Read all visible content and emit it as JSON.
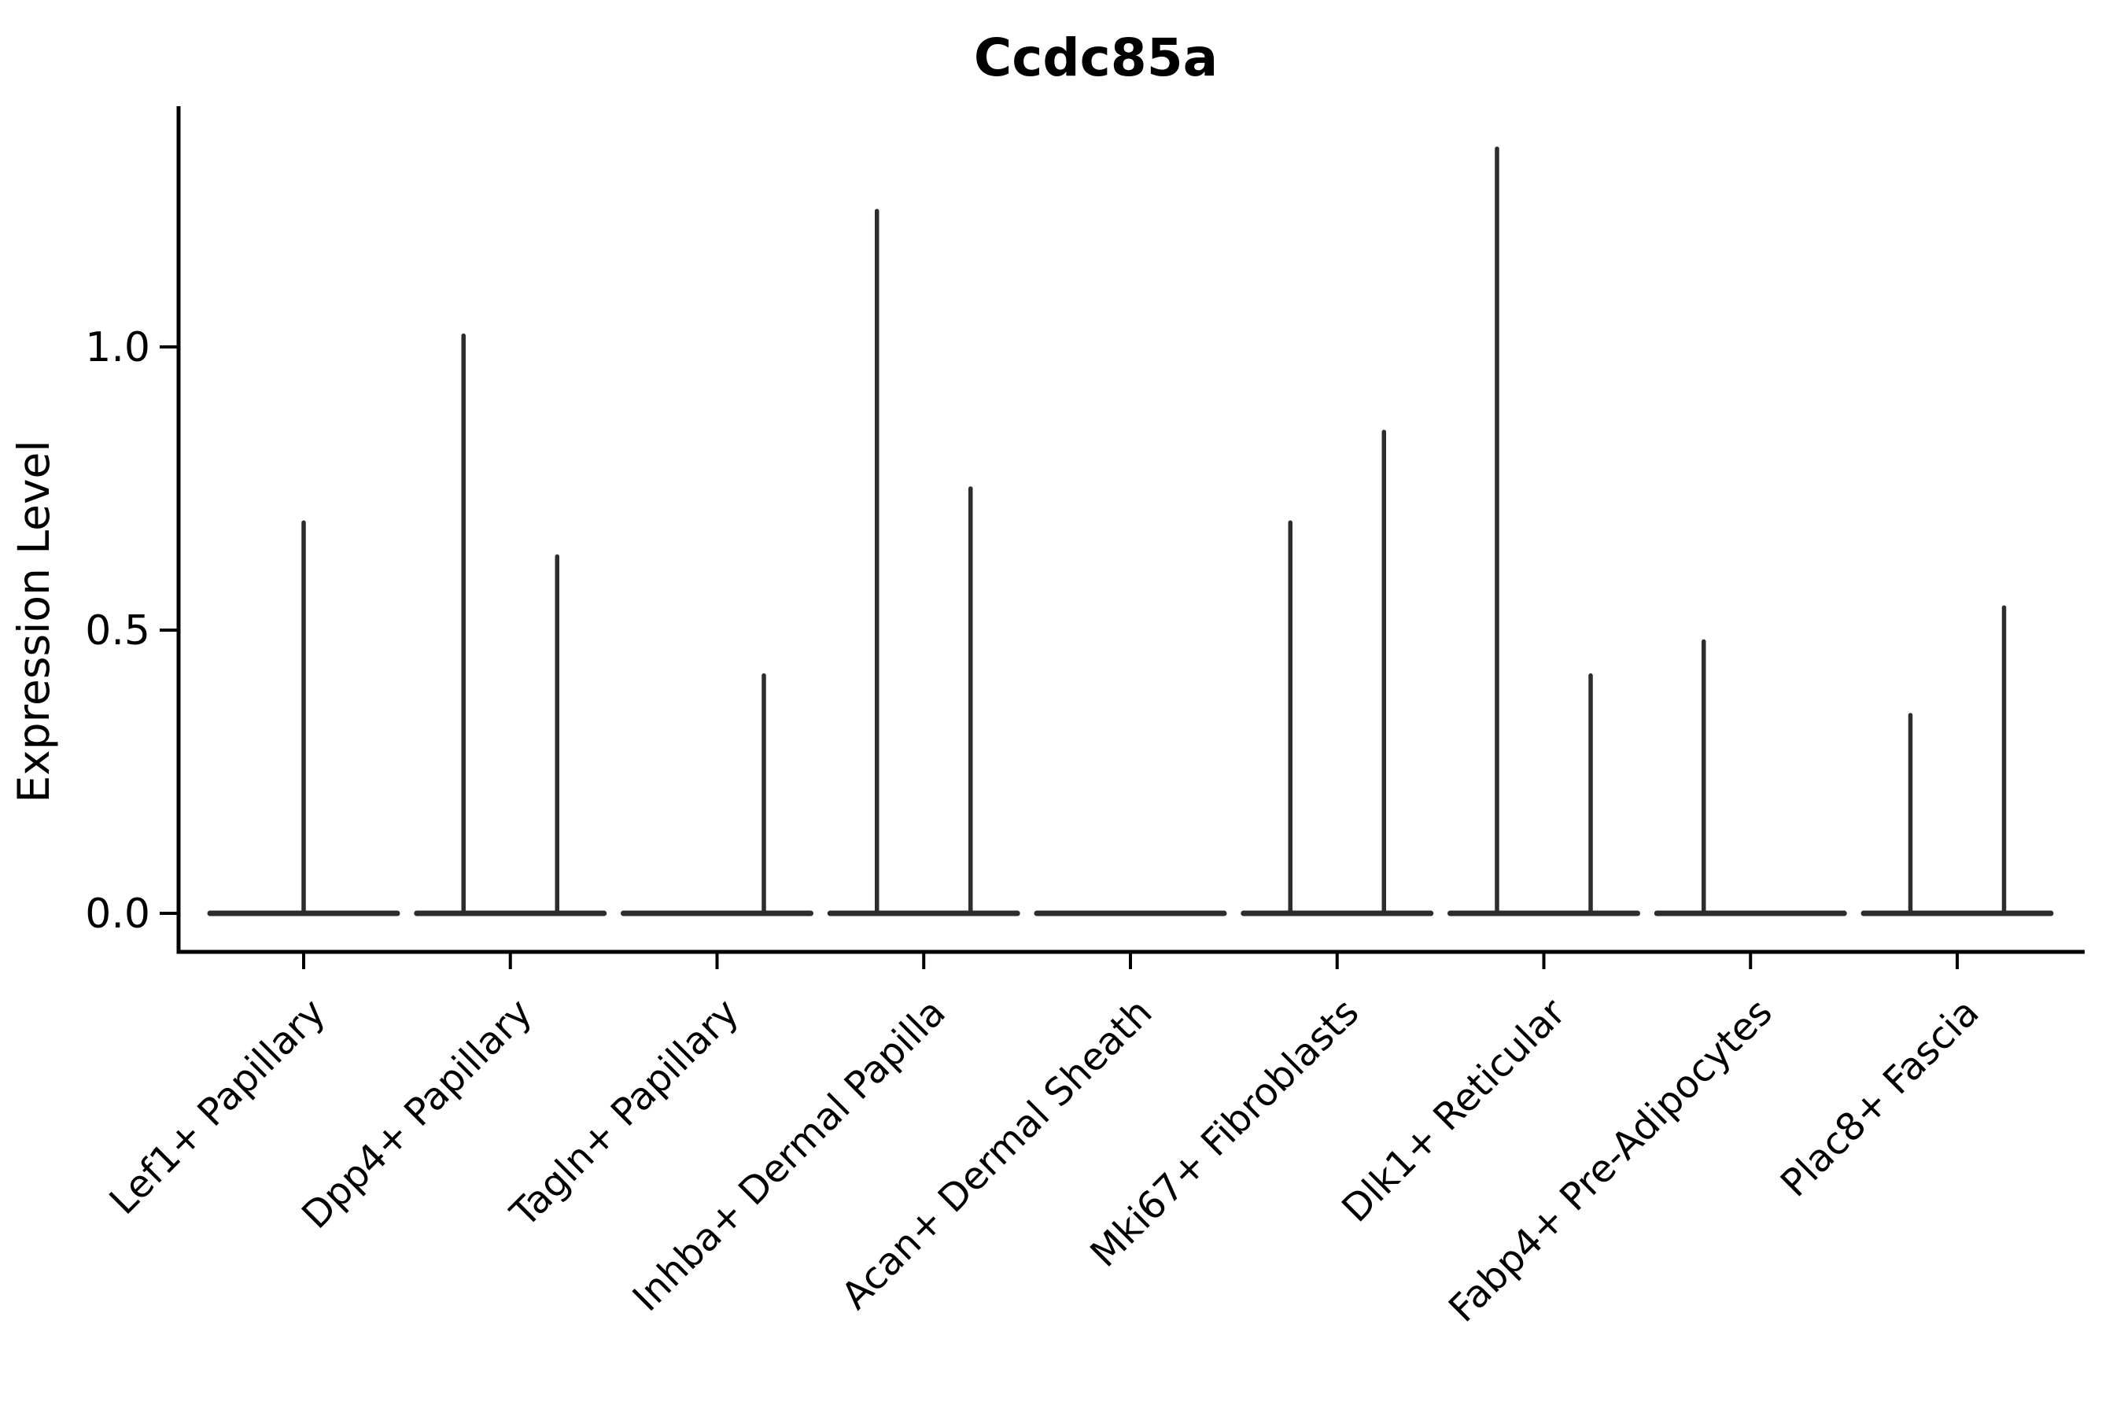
{
  "chart_data": {
    "type": "violin",
    "title": "Ccdc85a",
    "ylabel": "Expression Level",
    "xlabel": "",
    "grid": false,
    "legend": "none",
    "ylim": [
      -0.07,
      1.42
    ],
    "yticks": [
      {
        "label": "0.0",
        "value": 0.0
      },
      {
        "label": "0.5",
        "value": 0.5
      },
      {
        "label": "1.0",
        "value": 1.0
      }
    ],
    "categories": [
      "Lef1+ Papillary",
      "Dpp4+ Papillary",
      "Tagln+ Papillary",
      "Inhba+ Dermal Papilla",
      "Acan+ Dermal Sheath",
      "Mki67+ Fibroblasts",
      "Dlk1+ Reticular",
      "Fabp4+ Pre-Adipocytes",
      "Plac8+ Fascia"
    ],
    "violins": [
      {
        "category": "Lef1+ Papillary",
        "base_at_zero": true,
        "spikes": [
          {
            "offset": 0.0,
            "max": 0.69
          }
        ]
      },
      {
        "category": "Dpp4+ Papillary",
        "base_at_zero": true,
        "spikes": [
          {
            "offset": -0.2265,
            "max": 1.02
          },
          {
            "offset": 0.2265,
            "max": 0.63
          }
        ]
      },
      {
        "category": "Tagln+ Papillary",
        "base_at_zero": true,
        "spikes": [
          {
            "offset": 0.2265,
            "max": 0.42
          }
        ]
      },
      {
        "category": "Inhba+ Dermal Papilla",
        "base_at_zero": true,
        "spikes": [
          {
            "offset": -0.2265,
            "max": 1.24
          },
          {
            "offset": 0.2265,
            "max": 0.75
          }
        ]
      },
      {
        "category": "Acan+ Dermal Sheath",
        "base_at_zero": true,
        "spikes": []
      },
      {
        "category": "Mki67+ Fibroblasts",
        "base_at_zero": true,
        "spikes": [
          {
            "offset": -0.2265,
            "max": 0.69
          },
          {
            "offset": 0.2265,
            "max": 0.85
          }
        ]
      },
      {
        "category": "Dlk1+ Reticular",
        "base_at_zero": true,
        "spikes": [
          {
            "offset": -0.2265,
            "max": 1.35
          },
          {
            "offset": 0.2265,
            "max": 0.42
          }
        ]
      },
      {
        "category": "Fabp4+ Pre-Adipocytes",
        "base_at_zero": true,
        "spikes": [
          {
            "offset": -0.2265,
            "max": 0.48
          }
        ]
      },
      {
        "category": "Plac8+ Fascia",
        "base_at_zero": true,
        "spikes": [
          {
            "offset": -0.2265,
            "max": 0.35
          },
          {
            "offset": 0.2265,
            "max": 0.54
          }
        ]
      }
    ],
    "colors": {
      "violin_stroke": "#2d2d2d",
      "axis": "#000000",
      "text": "#000000",
      "background": "#ffffff"
    }
  }
}
